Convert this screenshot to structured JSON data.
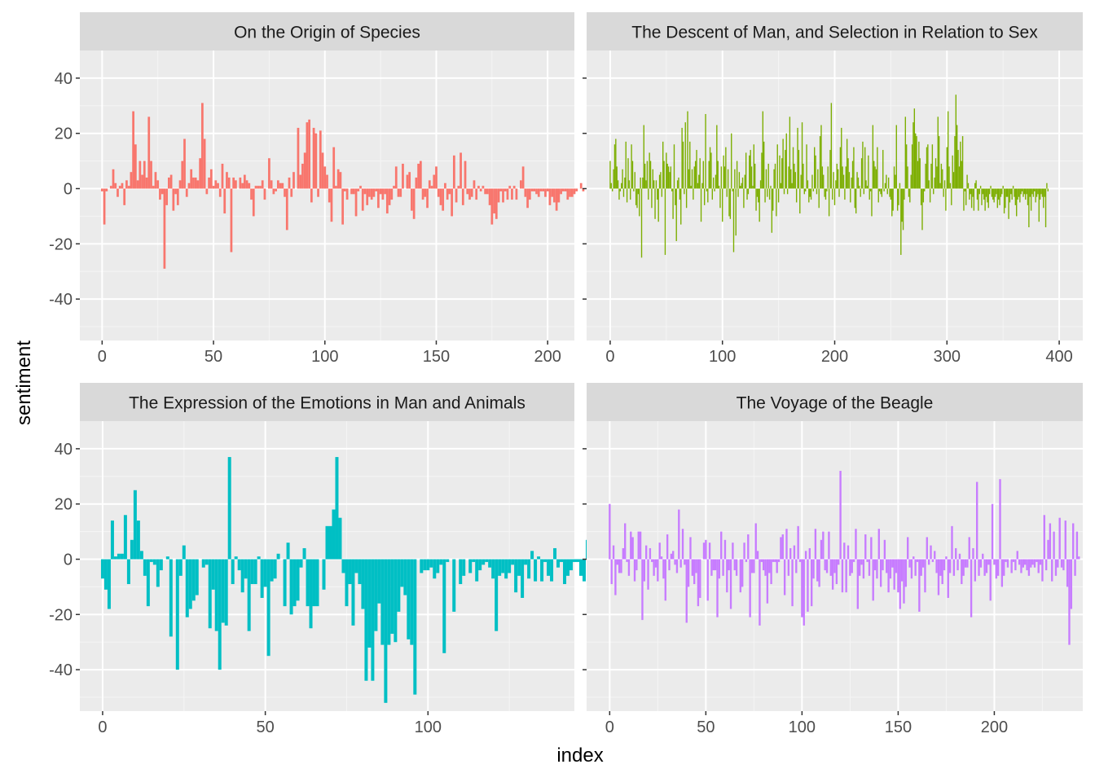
{
  "chart_data": {
    "type": "bar",
    "xlabel": "index",
    "ylabel": "sentiment",
    "ylim": [
      -55,
      50
    ],
    "yticks": [
      -40,
      -20,
      0,
      20,
      40
    ],
    "grid": true,
    "panels": [
      {
        "title": "On the Origin of Species",
        "color": "#F8766D",
        "xlim": [
          -10,
          212
        ],
        "xticks": [
          0,
          50,
          100,
          150,
          200
        ],
        "x_start": 0,
        "values": [
          -1,
          -13,
          -1,
          0,
          1,
          7,
          2,
          -3,
          1,
          2,
          -6,
          3,
          1,
          6,
          28,
          16,
          3,
          10,
          5,
          10,
          4,
          26,
          10,
          1,
          6,
          3,
          -4,
          -2,
          -29,
          -6,
          4,
          5,
          -8,
          -2,
          -6,
          3,
          10,
          18,
          -3,
          2,
          7,
          4,
          4,
          3,
          11,
          31,
          18,
          -2,
          4,
          7,
          1,
          3,
          2,
          -3,
          9,
          -9,
          6,
          4,
          -23,
          4,
          3,
          0,
          4,
          2,
          5,
          3,
          2,
          -4,
          -10,
          1,
          1,
          1,
          3,
          -4,
          0,
          11,
          3,
          -2,
          -1,
          3,
          2,
          2,
          -3,
          -15,
          4,
          -3,
          6,
          0,
          22,
          5,
          9,
          13,
          24,
          25,
          -5,
          22,
          20,
          -3,
          21,
          13,
          8,
          5,
          -5,
          -12,
          15,
          1,
          7,
          6,
          -13,
          -1,
          -4,
          0,
          -2,
          -2,
          -10,
          -1,
          1,
          -8,
          -2,
          -6,
          -3,
          -4,
          -3,
          -1,
          -7,
          -2,
          -4,
          -2,
          -9,
          -6,
          -4,
          1,
          8,
          -3,
          -3,
          9,
          0,
          5,
          6,
          -8,
          -11,
          4,
          9,
          10,
          -4,
          -3,
          -7,
          3,
          1,
          5,
          8,
          -3,
          -6,
          -8,
          2,
          -4,
          -2,
          -10,
          12,
          -5,
          1,
          13,
          -6,
          10,
          -2,
          -4,
          -3,
          3,
          -4,
          1,
          -1,
          1,
          -2,
          -2,
          -6,
          -13,
          -9,
          -11,
          -5,
          -1,
          -5,
          -1,
          -4,
          1,
          -4,
          1,
          -4,
          0,
          3,
          8,
          -3,
          -7,
          -4,
          -1,
          -1,
          -2,
          -3,
          -1,
          -1,
          -3,
          -1,
          -6,
          -3,
          -5,
          -8,
          -5,
          -2,
          -1,
          -1,
          -4,
          -3,
          -3,
          -2,
          -1,
          0,
          2,
          -1
        ]
      },
      {
        "title": "The Descent of Man, and Selection in Relation to Sex",
        "color": "#7CAE00",
        "xlim": [
          -21,
          421
        ],
        "xticks": [
          0,
          100,
          200,
          300,
          400
        ],
        "x_start": 0,
        "values": [
          10,
          2,
          -1,
          7,
          16,
          18,
          8,
          3,
          -4,
          -1,
          2,
          7,
          -3,
          4,
          17,
          -5,
          11,
          3,
          -4,
          16,
          10,
          -1,
          6,
          -6,
          -7,
          -2,
          -10,
          4,
          -25,
          4,
          23,
          9,
          3,
          10,
          -4,
          13,
          10,
          -7,
          7,
          3,
          -11,
          3,
          -4,
          -12,
          5,
          6,
          -3,
          17,
          10,
          -24,
          13,
          9,
          8,
          6,
          8,
          -1,
          -11,
          16,
          -6,
          -19,
          3,
          4,
          -4,
          -13,
          22,
          17,
          -2,
          24,
          -7,
          28,
          7,
          17,
          1,
          7,
          -4,
          8,
          10,
          14,
          2,
          5,
          11,
          -12,
          2,
          10,
          -6,
          27,
          -1,
          -5,
          10,
          15,
          13,
          -4,
          4,
          -1,
          5,
          23,
          10,
          1,
          -7,
          8,
          -12,
          12,
          8,
          15,
          -3,
          7,
          -10,
          -11,
          20,
          -1,
          -23,
          7,
          -17,
          10,
          -3,
          6,
          1,
          2,
          4,
          -7,
          5,
          13,
          -4,
          -2,
          12,
          14,
          8,
          1,
          16,
          9,
          -8,
          -3,
          -5,
          -12,
          3,
          13,
          28,
          17,
          -5,
          7,
          -3,
          9,
          -4,
          1,
          -16,
          -8,
          7,
          9,
          -10,
          16,
          -5,
          12,
          2,
          11,
          18,
          -2,
          14,
          20,
          -2,
          8,
          26,
          7,
          2,
          15,
          9,
          6,
          -5,
          22,
          14,
          -9,
          5,
          24,
          9,
          -2,
          -1,
          16,
          3,
          -5,
          -3,
          -4,
          5,
          -1,
          15,
          12,
          -2,
          7,
          -7,
          19,
          23,
          8,
          5,
          -3,
          -4,
          -1,
          8,
          -10,
          14,
          31,
          -4,
          6,
          -6,
          3,
          9,
          7,
          -3,
          15,
          22,
          8,
          5,
          -4,
          8,
          18,
          11,
          6,
          -5,
          4,
          10,
          15,
          -7,
          -9,
          6,
          4,
          1,
          -3,
          11,
          17,
          -2,
          15,
          3,
          1,
          12,
          -4,
          -1,
          -10,
          23,
          10,
          8,
          7,
          15,
          -5,
          -1,
          -2,
          -3,
          14,
          -1,
          2,
          5,
          -2,
          4,
          -3,
          -4,
          -10,
          -8,
          8,
          5,
          23,
          -8,
          -6,
          2,
          -24,
          -12,
          -15,
          -4,
          26,
          16,
          8,
          -3,
          -5,
          5,
          16,
          24,
          29,
          20,
          19,
          10,
          17,
          11,
          -6,
          -15,
          -5,
          -1,
          9,
          15,
          16,
          3,
          -5,
          9,
          16,
          -2,
          4,
          11,
          8,
          26,
          19,
          2,
          9,
          7,
          -3,
          3,
          -8,
          15,
          28,
          8,
          2,
          -6,
          12,
          6,
          19,
          34,
          23,
          14,
          8,
          17,
          10,
          19,
          -8,
          -1,
          -6,
          5,
          2,
          -4,
          -2,
          -7,
          -3,
          -8,
          2,
          3,
          -4,
          -8,
          -2,
          1,
          -6,
          -2,
          -4,
          -8,
          -3,
          -5,
          -7,
          -2,
          1,
          -3,
          -4,
          -5,
          -3,
          -2,
          -7,
          -4,
          -6,
          -3,
          -2,
          1,
          -9,
          -7,
          -3,
          -3,
          -11,
          -5,
          -2,
          -4,
          1,
          -3,
          -6,
          -10,
          -4,
          -3,
          -5,
          -2,
          -1,
          -3,
          -2,
          -4,
          -2,
          -6,
          -14,
          -3,
          -8,
          -2,
          -3,
          -1,
          -5,
          -3,
          -2,
          -12,
          -4,
          -2,
          -3,
          -7,
          -3,
          -14,
          2,
          -1
        ]
      },
      {
        "title": "The Expression of the Emotions in Man and Animals",
        "color": "#00BFC4",
        "xlim": [
          -7,
          145
        ],
        "xticks": [
          0,
          50,
          100
        ],
        "x_start": 0,
        "values": [
          -7,
          -11,
          -18,
          14,
          1,
          2,
          2,
          16,
          -9,
          7,
          25,
          14,
          3,
          -6,
          -17,
          -1,
          -2,
          -10,
          -4,
          0,
          1,
          -28,
          0,
          -40,
          -6,
          5,
          -21,
          -18,
          -15,
          -13,
          0,
          -3,
          -2,
          -25,
          -11,
          -26,
          -40,
          -23,
          -24,
          37,
          -9,
          1,
          -4,
          -12,
          -7,
          -26,
          -9,
          -9,
          1,
          -14,
          -10,
          -35,
          -8,
          -7,
          2,
          0,
          -17,
          6,
          -20,
          -17,
          -15,
          -3,
          4,
          -17,
          -25,
          -17,
          -17,
          0,
          -11,
          12,
          12,
          18,
          37,
          15,
          -5,
          -17,
          -9,
          -24,
          -5,
          -9,
          -18,
          -44,
          -32,
          -44,
          -26,
          -16,
          -31,
          -52,
          -31,
          -27,
          -30,
          -19,
          -10,
          -13,
          -29,
          -31,
          -49,
          0,
          -5,
          -4,
          -4,
          -3,
          -7,
          -5,
          -2,
          -34,
          -1,
          0,
          -19,
          0,
          -9,
          -6,
          0,
          -5,
          -1,
          -8,
          -4,
          -2,
          -1,
          -3,
          -7,
          -26,
          -6,
          -5,
          -7,
          -5,
          -2,
          -12,
          -6,
          -14,
          -2,
          -7,
          3,
          -8,
          1,
          -8,
          -1,
          -6,
          -8,
          4,
          -3,
          -1,
          -9,
          -6,
          -4,
          -1,
          -1,
          -6,
          -8,
          7
        ]
      },
      {
        "title": "The Voyage of the Beagle",
        "color": "#C77CFF",
        "xlim": [
          -12,
          246
        ],
        "xticks": [
          0,
          50,
          100,
          150,
          200
        ],
        "x_start": 0,
        "values": [
          20,
          -9,
          5,
          -13,
          -2,
          -5,
          -5,
          4,
          13,
          -1,
          -6,
          10,
          8,
          -8,
          -4,
          10,
          10,
          -22,
          -8,
          5,
          -11,
          4,
          -1,
          -6,
          -3,
          -8,
          6,
          1,
          -7,
          -15,
          9,
          -4,
          2,
          3,
          -2,
          -5,
          18,
          -3,
          11,
          -2,
          -23,
          -10,
          8,
          -6,
          -9,
          -5,
          -17,
          -14,
          0,
          6,
          7,
          -15,
          6,
          -6,
          -4,
          -4,
          -21,
          -7,
          10,
          -6,
          7,
          -12,
          -4,
          -18,
          6,
          -4,
          -6,
          0,
          -12,
          -10,
          6,
          -1,
          9,
          -21,
          -5,
          -5,
          13,
          3,
          -24,
          -1,
          -4,
          -6,
          -16,
          -5,
          -9,
          -1,
          -1,
          -5,
          -1,
          8,
          9,
          -13,
          11,
          -6,
          4,
          -17,
          5,
          -5,
          12,
          -1,
          -21,
          -24,
          3,
          -19,
          4,
          -17,
          -7,
          11,
          -8,
          -10,
          7,
          10,
          -4,
          -5,
          10,
          -6,
          -11,
          -5,
          -9,
          -2,
          32,
          -12,
          6,
          -12,
          5,
          -6,
          -5,
          -1,
          11,
          -18,
          -6,
          -2,
          -7,
          9,
          -1,
          -6,
          8,
          -15,
          -4,
          -7,
          11,
          -10,
          -4,
          7,
          -5,
          -12,
          -7,
          -3,
          -11,
          -5,
          -12,
          -18,
          -8,
          -16,
          -10,
          8,
          -3,
          -7,
          1,
          -6,
          -1,
          -19,
          -6,
          -3,
          -12,
          8,
          -2,
          5,
          -1,
          3,
          -5,
          -13,
          -6,
          -9,
          -4,
          1,
          -14,
          -5,
          12,
          -6,
          4,
          -4,
          2,
          -9,
          -6,
          -3,
          -3,
          8,
          -21,
          4,
          -8,
          28,
          -6,
          -3,
          2,
          -6,
          -5,
          -2,
          -15,
          20,
          -2,
          -7,
          -6,
          29,
          -10,
          -6,
          -1,
          -3,
          0,
          -5,
          -1,
          -4,
          3,
          -2,
          -5,
          -3,
          -2,
          -4,
          -6,
          -3,
          -2,
          -3,
          -1,
          -5,
          -2,
          -8,
          16,
          -4,
          7,
          13,
          -8,
          10,
          -6,
          -3,
          15,
          -3,
          -4,
          14,
          -10,
          -31,
          -18,
          13,
          -6,
          10,
          1
        ]
      }
    ]
  }
}
